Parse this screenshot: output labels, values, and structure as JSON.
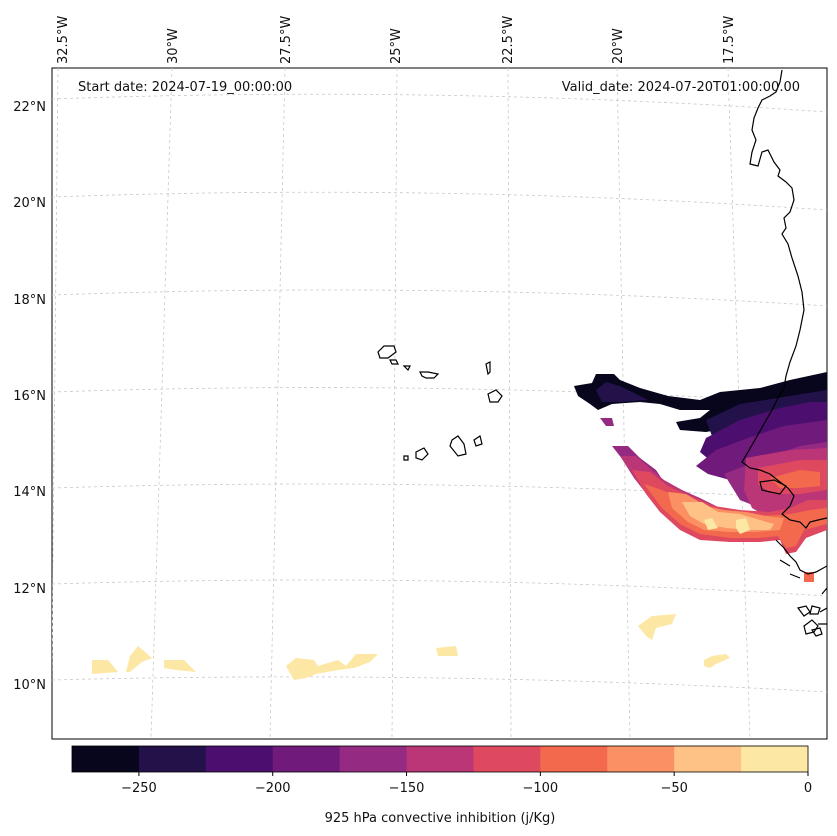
{
  "title_left": "Start date: 2024-07-19_00:00:00",
  "title_right": "Valid_date: 2024-07-20T01:00:00.00",
  "lon_labels": [
    "32.5°W",
    "30°W",
    "27.5°W",
    "25°W",
    "22.5°W",
    "20°W",
    "17.5°W"
  ],
  "lat_labels": [
    "22°N",
    "20°N",
    "18°N",
    "16°N",
    "14°N",
    "12°N",
    "10°N"
  ],
  "colorbar": {
    "label": "925 hPa convective inhibition (j/Kg)",
    "ticks": [
      "−250",
      "−200",
      "−150",
      "−100",
      "−50",
      "0"
    ],
    "colors": [
      "#07061c",
      "#23124a",
      "#4c0f6f",
      "#701a7c",
      "#942a81",
      "#bb3677",
      "#df4960",
      "#f2694d",
      "#fb9163",
      "#fec287",
      "#fde7a4"
    ]
  }
}
